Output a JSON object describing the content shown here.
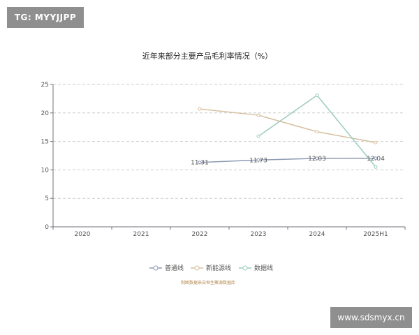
{
  "watermarks": {
    "top_left": "TG: MYYJJPP",
    "bottom_right": "www.sdsmyx.cn"
  },
  "chart_data": {
    "type": "line",
    "title": "近年来部分主要产品毛利率情况（%）",
    "categories": [
      "2020",
      "2021",
      "2022",
      "2023",
      "2024",
      "2025H1"
    ],
    "ylim": [
      0,
      25
    ],
    "yticks": [
      0,
      5,
      10,
      15,
      20,
      25
    ],
    "grid": true,
    "legend_position": "bottom",
    "source": "制图数据来自恒生聚源数据库",
    "series": [
      {
        "name": "普通线",
        "color": "#8e9bb5",
        "values": [
          null,
          null,
          11.31,
          11.73,
          12.03,
          12.04
        ],
        "labels": [
          "",
          "",
          "11.31",
          "11.73",
          "12.03",
          "12.04"
        ]
      },
      {
        "name": "新能源线",
        "color": "#d6c09e",
        "values": [
          null,
          null,
          20.7,
          19.6,
          16.7,
          14.8
        ],
        "labels": [
          "",
          "",
          "",
          "",
          "",
          ""
        ]
      },
      {
        "name": "数据线",
        "color": "#9ccbbf",
        "values": [
          null,
          null,
          null,
          15.9,
          23.1,
          10.5
        ],
        "labels": [
          "",
          "",
          "",
          "",
          "",
          ""
        ]
      }
    ]
  }
}
